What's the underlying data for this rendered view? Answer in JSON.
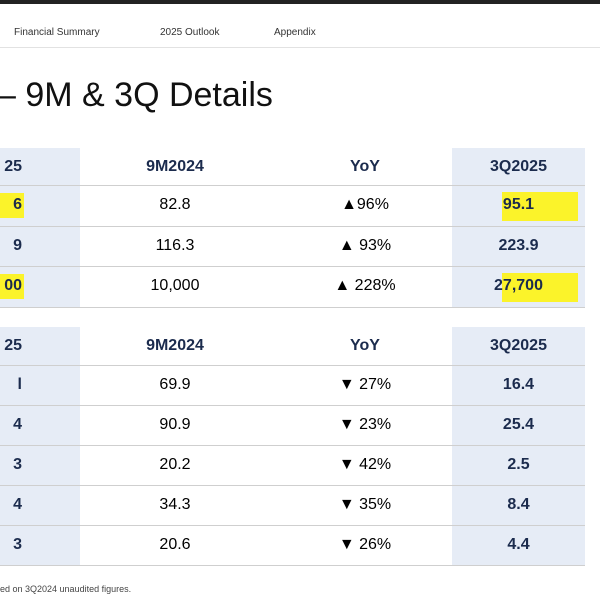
{
  "nav": [
    "Financial Summary",
    "2025 Outlook",
    "Appendix"
  ],
  "title": "– 9M & 3Q Details",
  "tables": [
    {
      "header": [
        "25",
        "9M2024",
        "YoY",
        "3Q2025"
      ],
      "rows": [
        [
          "6",
          "82.8",
          "▲96%",
          "95.1"
        ],
        [
          "9",
          "116.3",
          "▲ 93%",
          "223.9"
        ],
        [
          "00",
          "10,000",
          "▲ 228%",
          "27,700"
        ]
      ]
    },
    {
      "header": [
        "25",
        "9M2024",
        "YoY",
        "3Q2025"
      ],
      "rows": [
        [
          "l",
          "69.9",
          "▼ 27%",
          "16.4"
        ],
        [
          "4",
          "90.9",
          "▼ 23%",
          "25.4"
        ],
        [
          "3",
          "20.2",
          "▼ 42%",
          "2.5"
        ],
        [
          "4",
          "34.3",
          "▼ 35%",
          "8.4"
        ],
        [
          "3",
          "20.6",
          "▼ 26%",
          "4.4"
        ]
      ]
    }
  ],
  "footnote": "ed on 3Q2024 unaudited figures."
}
